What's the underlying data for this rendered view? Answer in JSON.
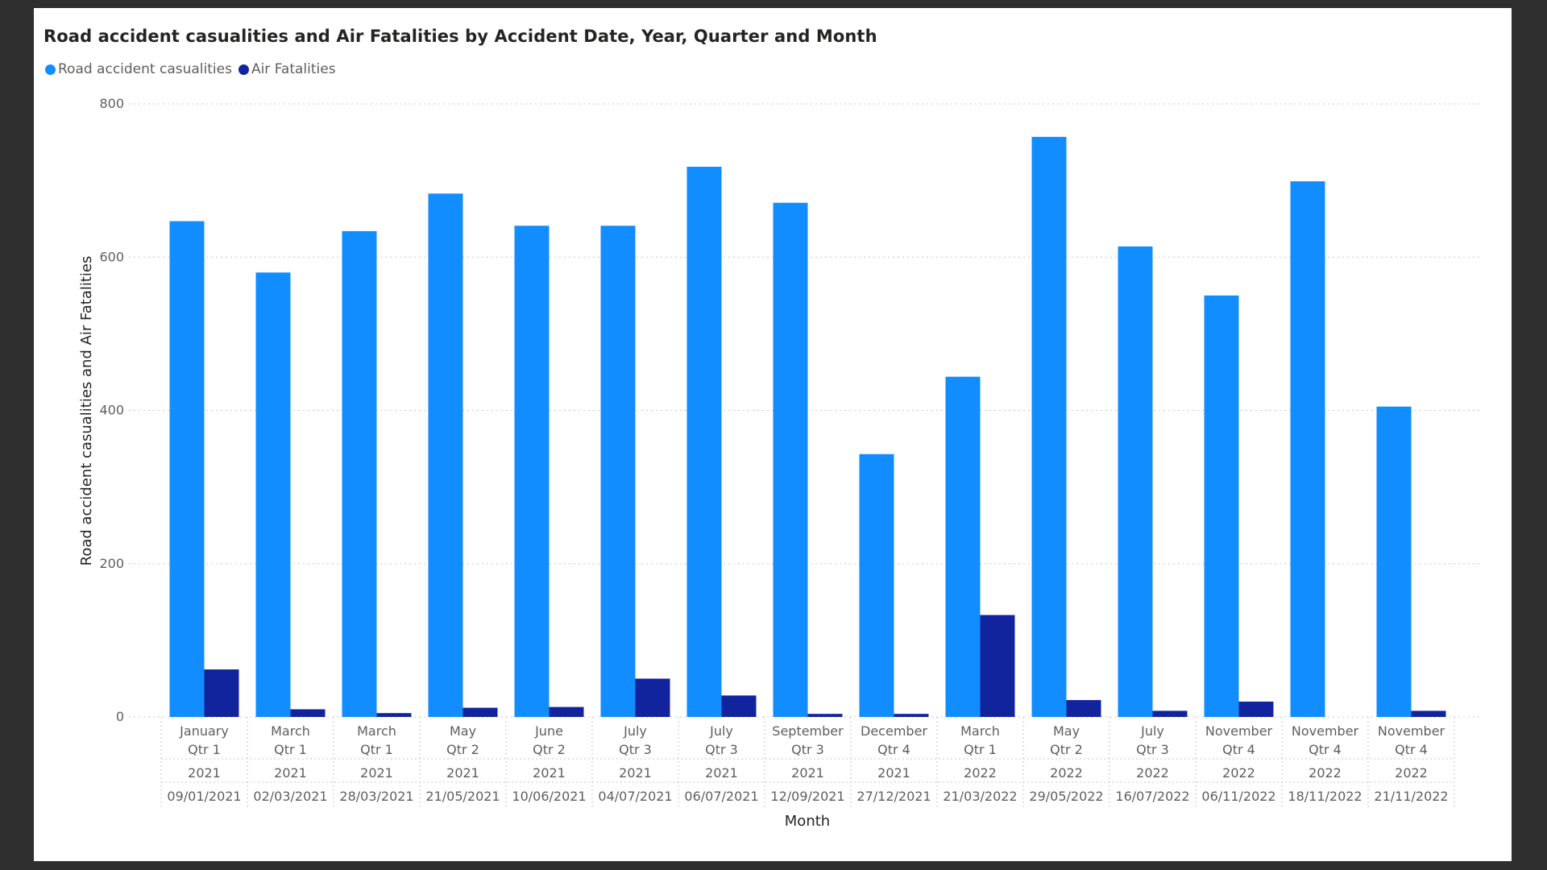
{
  "chart_data": {
    "type": "bar",
    "title": "Road accident casualities and Air Fatalities by Accident Date, Year, Quarter and Month",
    "xlabel": "Month",
    "ylabel": "Road accident casualities and Air Fatalities",
    "ylim": [
      0,
      800
    ],
    "yticks": [
      0,
      200,
      400,
      600,
      800
    ],
    "grid": true,
    "legend_position": "top-left",
    "categories": [
      {
        "month": "January",
        "quarter": "Qtr 1",
        "year": "2021",
        "date": "09/01/2021"
      },
      {
        "month": "March",
        "quarter": "Qtr 1",
        "year": "2021",
        "date": "02/03/2021"
      },
      {
        "month": "March",
        "quarter": "Qtr 1",
        "year": "2021",
        "date": "28/03/2021"
      },
      {
        "month": "May",
        "quarter": "Qtr 2",
        "year": "2021",
        "date": "21/05/2021"
      },
      {
        "month": "June",
        "quarter": "Qtr 2",
        "year": "2021",
        "date": "10/06/2021"
      },
      {
        "month": "July",
        "quarter": "Qtr 3",
        "year": "2021",
        "date": "04/07/2021"
      },
      {
        "month": "July",
        "quarter": "Qtr 3",
        "year": "2021",
        "date": "06/07/2021"
      },
      {
        "month": "September",
        "quarter": "Qtr 3",
        "year": "2021",
        "date": "12/09/2021"
      },
      {
        "month": "December",
        "quarter": "Qtr 4",
        "year": "2021",
        "date": "27/12/2021"
      },
      {
        "month": "March",
        "quarter": "Qtr 1",
        "year": "2022",
        "date": "21/03/2022"
      },
      {
        "month": "May",
        "quarter": "Qtr 2",
        "year": "2022",
        "date": "29/05/2022"
      },
      {
        "month": "July",
        "quarter": "Qtr 3",
        "year": "2022",
        "date": "16/07/2022"
      },
      {
        "month": "November",
        "quarter": "Qtr 4",
        "year": "2022",
        "date": "06/11/2022"
      },
      {
        "month": "November",
        "quarter": "Qtr 4",
        "year": "2022",
        "date": "18/11/2022"
      },
      {
        "month": "November",
        "quarter": "Qtr 4",
        "year": "2022",
        "date": "21/11/2022"
      }
    ],
    "series": [
      {
        "name": "Road accident casualities",
        "color": "#118dff",
        "values": [
          647,
          580,
          634,
          683,
          641,
          641,
          718,
          671,
          343,
          444,
          757,
          614,
          550,
          699,
          405
        ]
      },
      {
        "name": "Air Fatalities",
        "color": "#12239e",
        "values": [
          62,
          10,
          5,
          12,
          13,
          50,
          28,
          4,
          4,
          133,
          22,
          8,
          20,
          0,
          8
        ]
      }
    ]
  }
}
